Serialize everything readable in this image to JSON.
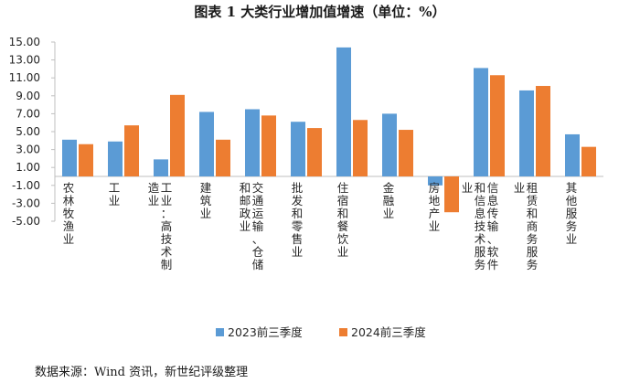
{
  "title": "图表 1 大类行业增加值增速（单位：%）",
  "source": "数据来源：Wind 资讯，新世纪评级整理",
  "chart_data": {
    "type": "bar",
    "categories": [
      "农林牧渔业",
      "工业",
      "工业：高技术制造业",
      "建筑业",
      "交通运输、仓储和邮政业",
      "批发和零售业",
      "住宿和餐饮业",
      "金融业",
      "房地产业",
      "信息传输、软件和信息技术服务业",
      "租赁和商务服务业",
      "其他服务业"
    ],
    "series": [
      {
        "name": "2023前三季度",
        "color": "#5b9bd5",
        "values": [
          4.1,
          3.9,
          1.9,
          7.2,
          7.5,
          6.1,
          14.4,
          7.0,
          -1.0,
          12.1,
          9.6,
          4.7
        ]
      },
      {
        "name": "2024前三季度",
        "color": "#ed7d31",
        "values": [
          3.6,
          5.7,
          9.1,
          4.1,
          6.8,
          5.4,
          6.3,
          5.2,
          -4.0,
          11.3,
          10.1,
          3.3
        ]
      }
    ],
    "ylim": [
      -5.0,
      15.0
    ],
    "yticks": [
      "15.00",
      "13.00",
      "11.00",
      "9.00",
      "7.00",
      "5.00",
      "3.00",
      "1.00",
      "-1.00",
      "-3.00",
      "-5.00"
    ],
    "legend_position": "bottom",
    "grid": false
  }
}
